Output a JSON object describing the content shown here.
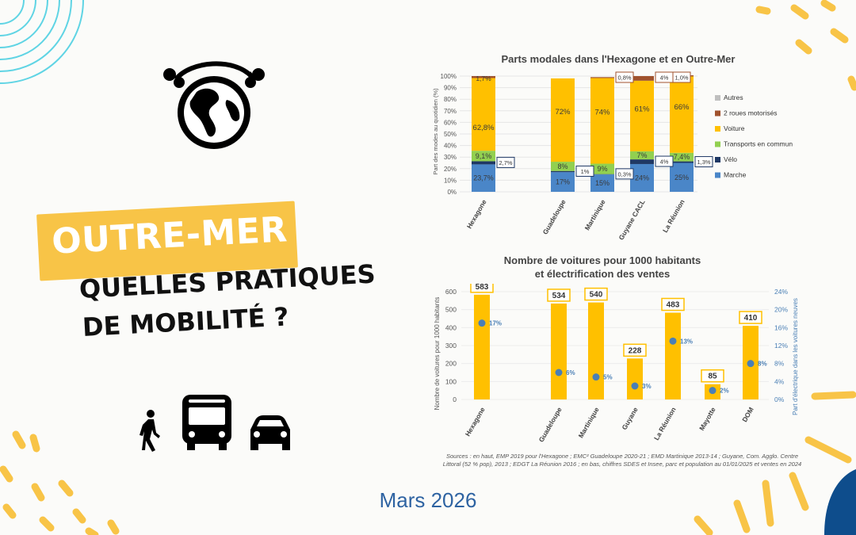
{
  "headline": {
    "badge": "OUTRE-MER",
    "line1": "QUELLES PRATIQUES",
    "line2": "DE MOBILITÉ ?"
  },
  "date": "Mars 2026",
  "colors": {
    "accent_yellow": "#f8c447",
    "date_blue": "#2e63a2",
    "navy": "#0e4d8c",
    "cyan_lines": "#5fd4e4"
  },
  "icons": [
    "globe-icon",
    "pedestrian-icon",
    "bus-icon",
    "car-icon"
  ],
  "chart_data": [
    {
      "type": "bar",
      "stacked": true,
      "title": "Parts modales dans l'Hexagone et en Outre-Mer",
      "ylabel": "Part des modes au quotidien (%)",
      "ylim": [
        0,
        100
      ],
      "yticks": [
        "0%",
        "10%",
        "20%",
        "30%",
        "40%",
        "50%",
        "60%",
        "70%",
        "80%",
        "90%",
        "100%"
      ],
      "categories": [
        "Hexagone",
        "Guadeloupe",
        "Martinique",
        "Guyane CACL",
        "La Réunion"
      ],
      "legend_position": "right",
      "series": [
        {
          "name": "Marche",
          "color": "#4a86c8",
          "values": [
            23.7,
            17,
            15,
            24,
            25
          ],
          "labels": [
            "23,7%",
            "17%",
            "15%",
            "24%",
            "25%"
          ]
        },
        {
          "name": "Vélo",
          "color": "#1f3864",
          "values": [
            2.7,
            1,
            0.3,
            4,
            1.3
          ],
          "labels": [
            "2,7%",
            "1%",
            "0,3%",
            "4%",
            "1,3%"
          ]
        },
        {
          "name": "Transports en commun",
          "color": "#92d050",
          "values": [
            9.1,
            8,
            9,
            7,
            7.4
          ],
          "labels": [
            "9,1%",
            "8%",
            "9%",
            "7%",
            "7,4%"
          ]
        },
        {
          "name": "Voiture",
          "color": "#ffc000",
          "values": [
            62.8,
            72,
            74,
            61,
            66
          ],
          "labels": [
            "62,8%",
            "72%",
            "74%",
            "61%",
            "66%"
          ]
        },
        {
          "name": "2 roues motorisés",
          "color": "#a0522d",
          "values": [
            1.7,
            0,
            0.8,
            4,
            1.0
          ],
          "labels": [
            "1,7%",
            "",
            "0,8%",
            "4%",
            "1,0%"
          ]
        },
        {
          "name": "Autres",
          "color": "#bfbfbf",
          "values": [
            0,
            0,
            0,
            0,
            0
          ],
          "labels": [
            "",
            "",
            "",
            "",
            ""
          ]
        }
      ]
    },
    {
      "type": "bar",
      "title": "Nombre de voitures pour 1000 habitants",
      "subtitle": "et électrification des ventes",
      "ylabel": "Nombre de voitures pour 1000 habitants",
      "y2label": "Part d'électrique dans les voitures neuves",
      "ylim": [
        0,
        600
      ],
      "y2lim": [
        0,
        24
      ],
      "yticks": [
        "0",
        "100",
        "200",
        "300",
        "400",
        "500",
        "600"
      ],
      "y2ticks": [
        "0%",
        "4%",
        "8%",
        "12%",
        "16%",
        "20%",
        "24%"
      ],
      "categories": [
        "Hexagone",
        "Guadeloupe",
        "Martinique",
        "Guyane",
        "La Réunion",
        "Mayotte",
        "DOM"
      ],
      "bar_color": "#ffc000",
      "point_color": "#4a7fb5",
      "values": [
        583,
        534,
        540,
        228,
        483,
        85,
        410
      ],
      "value_labels": [
        "583",
        "534",
        "540",
        "228",
        "483",
        "85",
        "410"
      ],
      "electric_share": [
        17,
        6,
        5,
        3,
        13,
        2,
        8
      ],
      "electric_labels": [
        "17%",
        "6%",
        "5%",
        "3%",
        "13%",
        "2%",
        "8%"
      ]
    }
  ],
  "sources": {
    "line1": "Sources : en haut, EMP 2019 pour l'Hexagone ; EMC² Guadeloupe 2020-21 ; EMD Martinique 2013-14 ; Guyane, Com. Agglo. Centre",
    "line2": "Littoral (52 % pop), 2013 ; EDGT La Réunion 2016 ; en bas, chiffres SDES et Insee, parc et population au 01/01/2025 et ventes en 2024"
  }
}
